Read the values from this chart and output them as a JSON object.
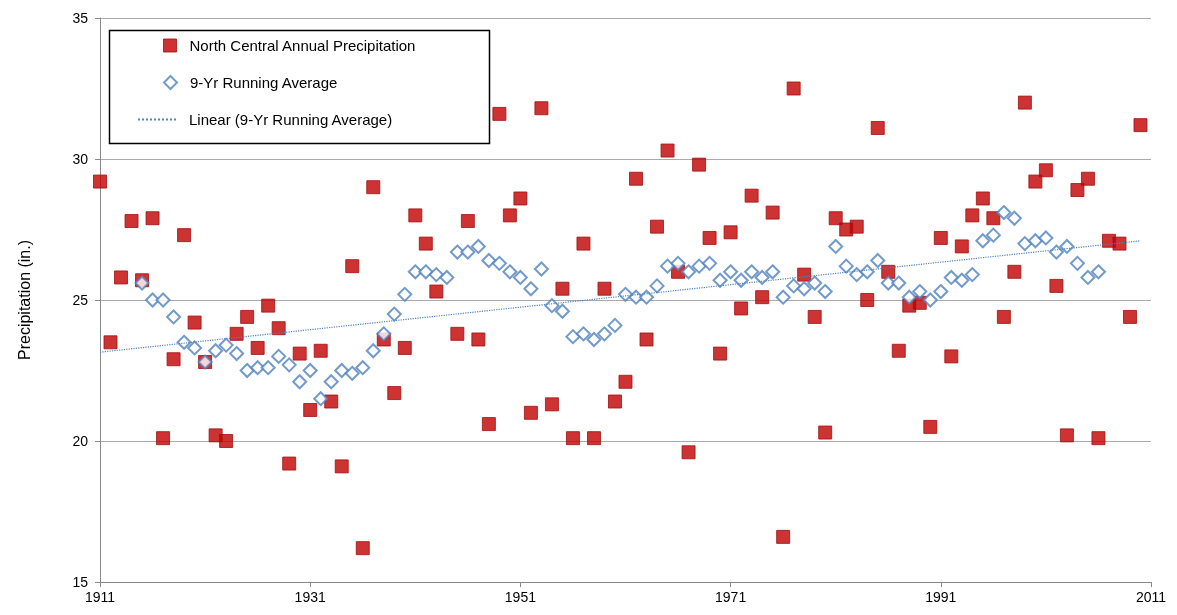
{
  "chart_data": {
    "type": "scatter",
    "ylabel": "Precipitation (in.)",
    "xlim": [
      1911,
      2011
    ],
    "xticks": [
      1911,
      1931,
      1951,
      1971,
      1991,
      2011
    ],
    "ylim": [
      15,
      35
    ],
    "yticks": [
      15,
      20,
      25,
      30,
      35
    ],
    "grid": "y",
    "legend": "top left",
    "series": [
      {
        "name": "North Central Annual Precipitation",
        "marker": "square",
        "color": "#c00000",
        "x": [
          1911,
          1912,
          1913,
          1914,
          1915,
          1916,
          1917,
          1918,
          1919,
          1920,
          1921,
          1922,
          1923,
          1924,
          1925,
          1926,
          1927,
          1928,
          1929,
          1930,
          1931,
          1932,
          1933,
          1934,
          1935,
          1936,
          1937,
          1938,
          1939,
          1940,
          1941,
          1942,
          1943,
          1944,
          1945,
          1946,
          1947,
          1948,
          1949,
          1950,
          1951,
          1952,
          1953,
          1954,
          1955,
          1956,
          1957,
          1958,
          1959,
          1960,
          1961,
          1962,
          1963,
          1964,
          1965,
          1966,
          1967,
          1968,
          1969,
          1970,
          1971,
          1972,
          1973,
          1974,
          1975,
          1976,
          1977,
          1978,
          1979,
          1980,
          1981,
          1982,
          1983,
          1984,
          1985,
          1986,
          1987,
          1988,
          1989,
          1990,
          1991,
          1992,
          1993,
          1994,
          1995,
          1996,
          1997,
          1998,
          1999,
          2000,
          2001,
          2002,
          2003,
          2004,
          2005,
          2006,
          2007,
          2008,
          2009,
          2010
        ],
        "values": [
          29.2,
          23.5,
          25.8,
          27.8,
          25.7,
          27.9,
          20.1,
          22.9,
          27.3,
          24.2,
          22.8,
          20.2,
          20.0,
          23.8,
          24.4,
          23.3,
          24.8,
          24.0,
          19.2,
          23.1,
          21.1,
          23.2,
          21.4,
          19.1,
          26.2,
          16.2,
          29.0,
          23.6,
          21.7,
          23.3,
          28.0,
          27.0,
          25.3,
          null,
          23.8,
          27.8,
          23.6,
          20.6,
          31.6,
          28.0,
          28.6,
          21.0,
          31.8,
          21.3,
          25.4,
          20.1,
          27.0,
          20.1,
          25.4,
          21.4,
          22.1,
          29.3,
          23.6,
          27.6,
          30.3,
          26.0,
          19.6,
          29.8,
          27.2,
          23.1,
          27.4,
          24.7,
          28.7,
          25.1,
          28.1,
          16.6,
          32.5,
          25.9,
          24.4,
          20.3,
          27.9,
          27.5,
          27.6,
          25.0,
          31.1,
          26.0,
          23.2,
          24.8,
          24.9,
          20.5,
          27.2,
          23.0,
          26.9,
          28.0,
          28.6,
          27.9,
          24.4,
          26.0,
          32.0,
          29.2,
          29.6,
          25.5,
          20.2,
          28.9,
          29.3,
          20.1,
          27.1,
          27.0,
          24.4,
          31.2
        ]
      },
      {
        "name": "9-Yr Running Average",
        "marker": "diamond",
        "color": "#4f81bd",
        "x": [
          1915,
          1916,
          1917,
          1918,
          1919,
          1920,
          1921,
          1922,
          1923,
          1924,
          1925,
          1926,
          1927,
          1928,
          1929,
          1930,
          1931,
          1932,
          1933,
          1934,
          1935,
          1936,
          1937,
          1938,
          1939,
          1940,
          1941,
          1942,
          1943,
          1944,
          1945,
          1946,
          1947,
          1948,
          1949,
          1950,
          1951,
          1952,
          1953,
          1954,
          1955,
          1956,
          1957,
          1958,
          1959,
          1960,
          1961,
          1962,
          1963,
          1964,
          1965,
          1966,
          1967,
          1968,
          1969,
          1970,
          1971,
          1972,
          1973,
          1974,
          1975,
          1976,
          1977,
          1978,
          1979,
          1980,
          1981,
          1982,
          1983,
          1984,
          1985,
          1986,
          1987,
          1988,
          1989,
          1990,
          1991,
          1992,
          1993,
          1994,
          1995,
          1996,
          1997,
          1998,
          1999,
          2000,
          2001,
          2002,
          2003,
          2004,
          2005,
          2006
        ],
        "values": [
          25.6,
          25.0,
          25.0,
          24.4,
          23.5,
          23.3,
          22.8,
          23.2,
          23.4,
          23.1,
          22.5,
          22.6,
          22.6,
          23.0,
          22.7,
          22.1,
          22.5,
          21.5,
          22.1,
          22.5,
          22.4,
          22.6,
          23.2,
          23.8,
          24.5,
          25.2,
          26.0,
          26.0,
          25.9,
          25.8,
          26.7,
          26.7,
          26.9,
          26.4,
          26.3,
          26.0,
          25.8,
          25.4,
          26.1,
          24.8,
          24.6,
          23.7,
          23.8,
          23.6,
          23.8,
          24.1,
          25.2,
          25.1,
          25.1,
          25.5,
          26.2,
          26.3,
          26.0,
          26.2,
          26.3,
          25.7,
          26.0,
          25.7,
          26.0,
          25.8,
          26.0,
          25.1,
          25.5,
          25.4,
          25.6,
          25.3,
          26.9,
          26.2,
          25.9,
          26.0,
          26.4,
          25.6,
          25.6,
          25.1,
          25.3,
          25.0,
          25.3,
          25.8,
          25.7,
          25.9,
          27.1,
          27.3,
          28.1,
          27.9,
          27.0,
          27.1,
          27.2,
          26.7,
          26.9,
          26.3,
          25.8,
          26.0
        ]
      },
      {
        "name": "Linear (9-Yr Running Average)",
        "type": "line",
        "marker": "none",
        "line_style": "dotted",
        "color": "#4f81bd",
        "x": [
          1911,
          2010
        ],
        "values": [
          23.15,
          27.1
        ]
      }
    ]
  }
}
